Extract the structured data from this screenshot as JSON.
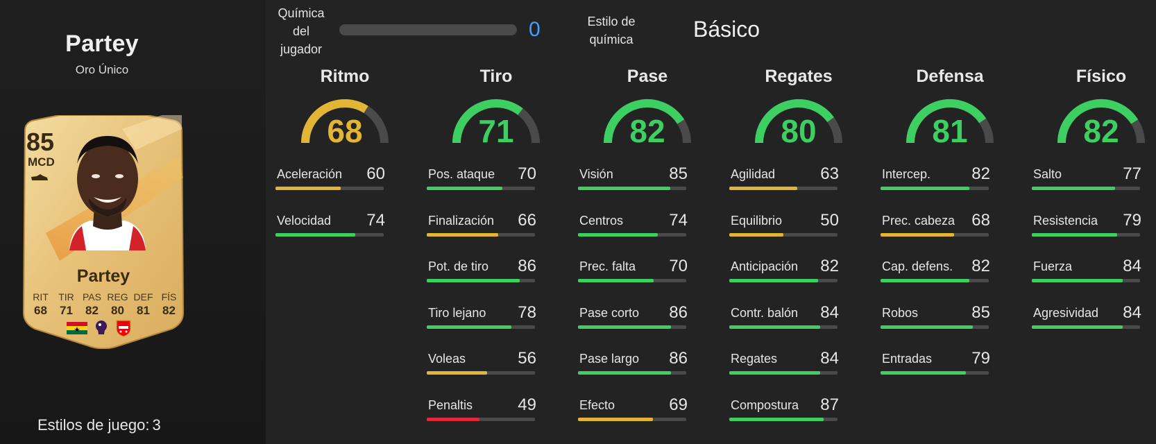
{
  "player": {
    "name": "Partey",
    "card_type": "Oro Único",
    "overall": "85",
    "position": "MCD",
    "card_name": "Partey",
    "attributes": [
      {
        "label": "RIT",
        "value": "68"
      },
      {
        "label": "TIR",
        "value": "71"
      },
      {
        "label": "PAS",
        "value": "82"
      },
      {
        "label": "REG",
        "value": "80"
      },
      {
        "label": "DEF",
        "value": "81"
      },
      {
        "label": "FÍS",
        "value": "82"
      }
    ],
    "badges": [
      "flag-icon",
      "league-icon",
      "club-crest-icon"
    ]
  },
  "playstyles": {
    "label": "Estilos de juego:",
    "count": "3"
  },
  "chemistry": {
    "label_lines": [
      "Química",
      "del",
      "jugador"
    ],
    "value": "0",
    "progress": 0,
    "style_label_lines": [
      "Estilo de",
      "química"
    ],
    "style_value": "Básico"
  },
  "colors": {
    "green": "#3ecf62",
    "yellow": "#e3b534",
    "red": "#e02a3a",
    "track": "#4a4a4a",
    "accent_blue": "#3aa3ff",
    "card_gold": "#e8c57e"
  },
  "categories": [
    {
      "title": "Ritmo",
      "value": 68,
      "stats": [
        {
          "name": "Aceleración",
          "value": 60
        },
        {
          "name": "Velocidad",
          "value": 74
        }
      ]
    },
    {
      "title": "Tiro",
      "value": 71,
      "stats": [
        {
          "name": "Pos. ataque",
          "value": 70
        },
        {
          "name": "Finalización",
          "value": 66
        },
        {
          "name": "Pot. de tiro",
          "value": 86
        },
        {
          "name": "Tiro lejano",
          "value": 78
        },
        {
          "name": "Voleas",
          "value": 56
        },
        {
          "name": "Penaltis",
          "value": 49
        }
      ]
    },
    {
      "title": "Pase",
      "value": 82,
      "stats": [
        {
          "name": "Visión",
          "value": 85
        },
        {
          "name": "Centros",
          "value": 74
        },
        {
          "name": "Prec. falta",
          "value": 70
        },
        {
          "name": "Pase corto",
          "value": 86
        },
        {
          "name": "Pase largo",
          "value": 86
        },
        {
          "name": "Efecto",
          "value": 69
        }
      ]
    },
    {
      "title": "Regates",
      "value": 80,
      "stats": [
        {
          "name": "Agilidad",
          "value": 63
        },
        {
          "name": "Equilibrio",
          "value": 50
        },
        {
          "name": "Anticipación",
          "value": 82
        },
        {
          "name": "Contr. balón",
          "value": 84
        },
        {
          "name": "Regates",
          "value": 84
        },
        {
          "name": "Compostura",
          "value": 87
        }
      ]
    },
    {
      "title": "Defensa",
      "value": 81,
      "stats": [
        {
          "name": "Intercep.",
          "value": 82
        },
        {
          "name": "Prec. cabeza",
          "value": 68
        },
        {
          "name": "Cap. defens.",
          "value": 82
        },
        {
          "name": "Robos",
          "value": 85
        },
        {
          "name": "Entradas",
          "value": 79
        }
      ]
    },
    {
      "title": "Físico",
      "value": 82,
      "stats": [
        {
          "name": "Salto",
          "value": 77
        },
        {
          "name": "Resistencia",
          "value": 79
        },
        {
          "name": "Fuerza",
          "value": 84
        },
        {
          "name": "Agresividad",
          "value": 84
        }
      ]
    }
  ]
}
